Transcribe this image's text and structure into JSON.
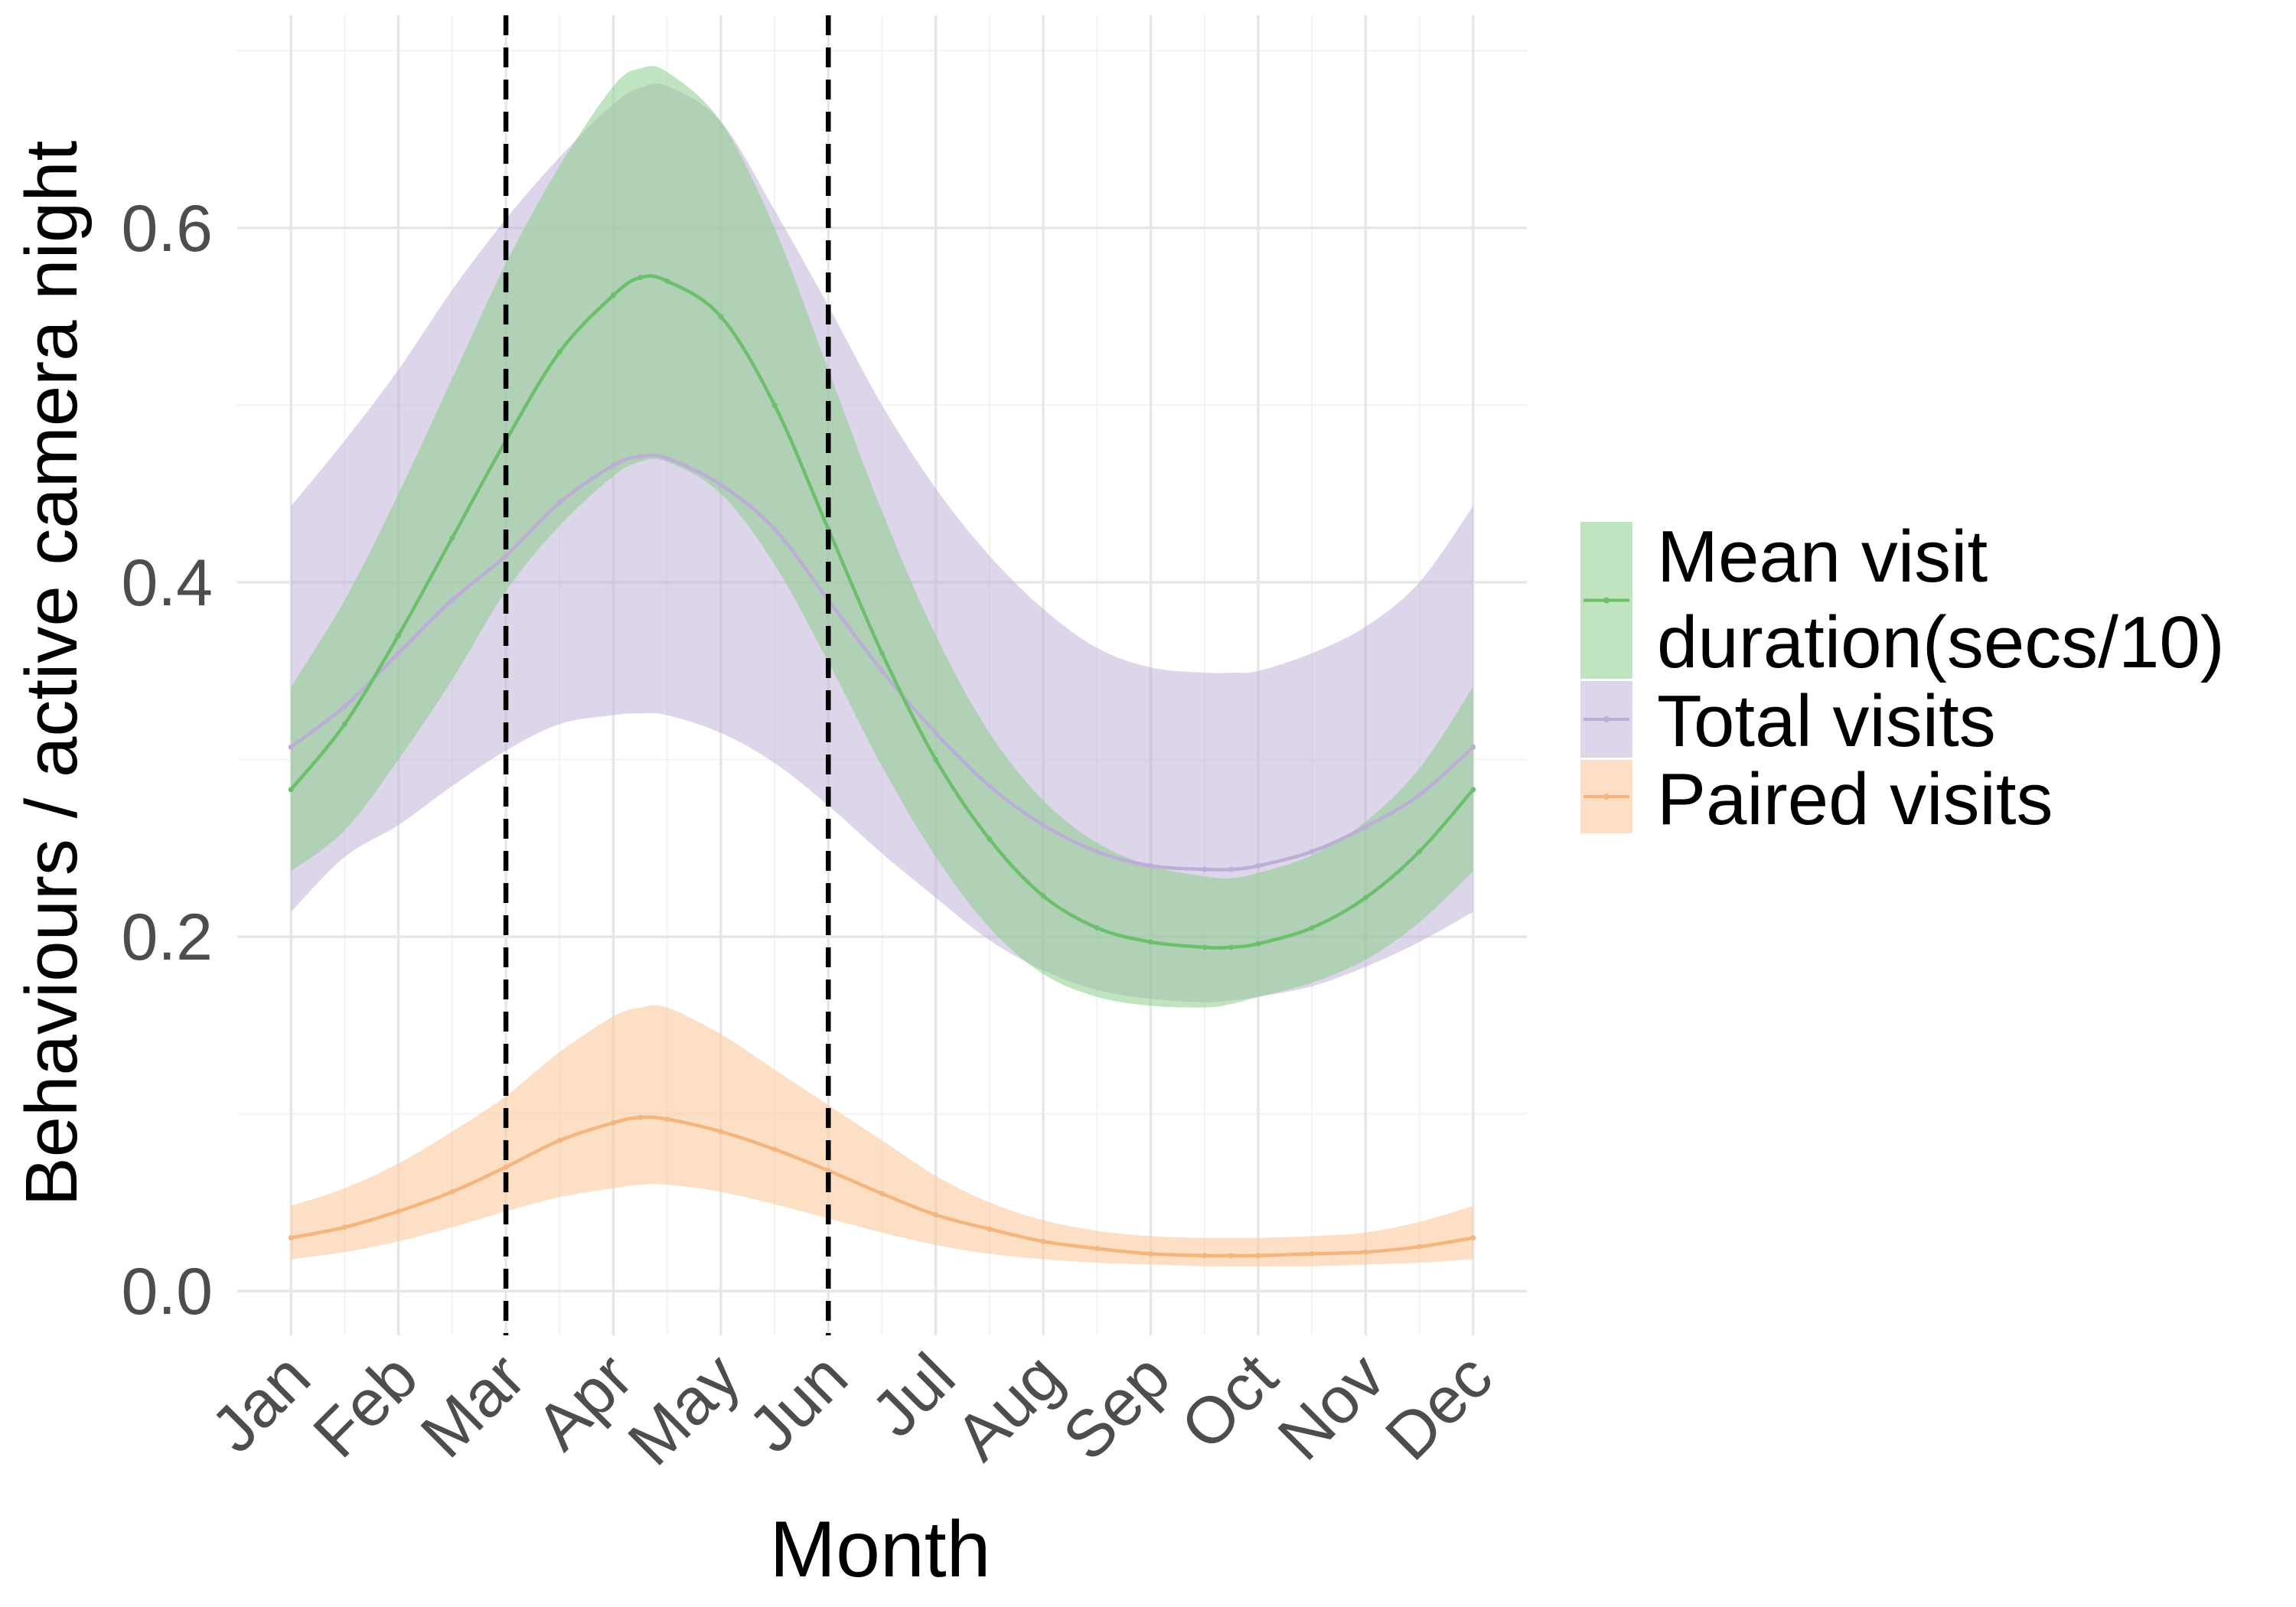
{
  "chart_data": {
    "type": "line",
    "xlabel": "Month",
    "ylabel": "Behaviours / active camera night",
    "categories": [
      "Jan",
      "Feb",
      "Mar",
      "Apr",
      "May",
      "Jun",
      "Jul",
      "Aug",
      "Sep",
      "Oct",
      "Nov",
      "Dec"
    ],
    "xlim": [
      0.5,
      12.5
    ],
    "ylim": [
      -0.025,
      0.72
    ],
    "y_ticks": [
      0.0,
      0.2,
      0.4,
      0.6
    ],
    "y_tick_labels": [
      "0.0",
      "0.2",
      "0.4",
      "0.6"
    ],
    "grid": true,
    "legend_position": "right",
    "vertical_lines": [
      {
        "name": "Mar",
        "x": 3.0,
        "style": "dashed",
        "color": "#000000"
      },
      {
        "name": "Jun",
        "x": 6.0,
        "style": "dashed",
        "color": "#000000"
      }
    ],
    "series": [
      {
        "name": "Total visits",
        "legend_label": "Total visits",
        "line_color": "#bcaed6",
        "fill_color": "#bcaed6",
        "fill_opacity": 0.5,
        "x": [
          1.0,
          1.5,
          2.0,
          2.5,
          3.0,
          3.5,
          4.0,
          4.25,
          4.5,
          5.0,
          5.5,
          6.0,
          6.5,
          7.0,
          7.5,
          8.0,
          8.5,
          9.0,
          9.5,
          9.75,
          10.0,
          10.5,
          11.0,
          11.5,
          12.0
        ],
        "y": [
          0.307,
          0.33,
          0.36,
          0.39,
          0.415,
          0.445,
          0.466,
          0.471,
          0.47,
          0.455,
          0.43,
          0.39,
          0.35,
          0.315,
          0.285,
          0.263,
          0.248,
          0.24,
          0.238,
          0.238,
          0.24,
          0.248,
          0.262,
          0.28,
          0.307
        ],
        "lower": [
          0.214,
          0.245,
          0.263,
          0.285,
          0.305,
          0.32,
          0.325,
          0.326,
          0.325,
          0.315,
          0.298,
          0.274,
          0.247,
          0.222,
          0.198,
          0.181,
          0.17,
          0.165,
          0.163,
          0.164,
          0.166,
          0.172,
          0.183,
          0.197,
          0.214
        ],
        "upper": [
          0.443,
          0.48,
          0.52,
          0.565,
          0.605,
          0.64,
          0.67,
          0.679,
          0.68,
          0.66,
          0.61,
          0.556,
          0.5,
          0.453,
          0.415,
          0.385,
          0.363,
          0.352,
          0.349,
          0.349,
          0.35,
          0.36,
          0.375,
          0.4,
          0.443
        ]
      },
      {
        "name": "Mean visit duration(secs/10)",
        "legend_label_lines": [
          "Mean visit",
          "duration(secs/10)"
        ],
        "line_color": "#6cc06c",
        "fill_color": "#8acd8a",
        "fill_opacity": 0.55,
        "x": [
          1.0,
          1.5,
          2.0,
          2.5,
          3.0,
          3.5,
          4.0,
          4.25,
          4.5,
          5.0,
          5.5,
          6.0,
          6.5,
          7.0,
          7.5,
          8.0,
          8.5,
          9.0,
          9.5,
          9.75,
          10.0,
          10.5,
          11.0,
          11.5,
          12.0
        ],
        "y": [
          0.283,
          0.32,
          0.37,
          0.425,
          0.48,
          0.53,
          0.562,
          0.572,
          0.57,
          0.55,
          0.5,
          0.43,
          0.36,
          0.3,
          0.255,
          0.223,
          0.205,
          0.197,
          0.194,
          0.194,
          0.196,
          0.205,
          0.222,
          0.248,
          0.283
        ],
        "lower": [
          0.237,
          0.26,
          0.3,
          0.345,
          0.395,
          0.432,
          0.46,
          0.468,
          0.468,
          0.45,
          0.41,
          0.355,
          0.296,
          0.245,
          0.205,
          0.179,
          0.166,
          0.161,
          0.16,
          0.162,
          0.166,
          0.174,
          0.187,
          0.208,
          0.237
        ],
        "upper": [
          0.341,
          0.39,
          0.45,
          0.515,
          0.58,
          0.635,
          0.68,
          0.69,
          0.688,
          0.66,
          0.6,
          0.52,
          0.44,
          0.37,
          0.315,
          0.277,
          0.253,
          0.24,
          0.234,
          0.233,
          0.236,
          0.246,
          0.265,
          0.295,
          0.341
        ]
      },
      {
        "name": "Paired visits",
        "legend_label": "Paired visits",
        "line_color": "#f5b57f",
        "fill_color": "#fbc99e",
        "fill_opacity": 0.6,
        "x": [
          1.0,
          1.5,
          2.0,
          2.5,
          3.0,
          3.5,
          4.0,
          4.25,
          4.5,
          5.0,
          5.5,
          6.0,
          6.5,
          7.0,
          7.5,
          8.0,
          8.5,
          9.0,
          9.5,
          9.75,
          10.0,
          10.5,
          11.0,
          11.5,
          12.0
        ],
        "y": [
          0.03,
          0.036,
          0.045,
          0.056,
          0.07,
          0.085,
          0.095,
          0.098,
          0.097,
          0.09,
          0.08,
          0.068,
          0.055,
          0.043,
          0.035,
          0.028,
          0.024,
          0.021,
          0.02,
          0.02,
          0.02,
          0.021,
          0.022,
          0.025,
          0.03
        ],
        "lower": [
          0.018,
          0.022,
          0.028,
          0.036,
          0.045,
          0.053,
          0.058,
          0.06,
          0.06,
          0.056,
          0.049,
          0.041,
          0.033,
          0.026,
          0.021,
          0.018,
          0.016,
          0.015,
          0.014,
          0.014,
          0.014,
          0.014,
          0.015,
          0.016,
          0.018
        ],
        "upper": [
          0.048,
          0.058,
          0.072,
          0.09,
          0.11,
          0.135,
          0.155,
          0.16,
          0.16,
          0.145,
          0.125,
          0.105,
          0.085,
          0.065,
          0.05,
          0.04,
          0.034,
          0.031,
          0.03,
          0.03,
          0.03,
          0.031,
          0.033,
          0.039,
          0.048
        ]
      }
    ],
    "legend": [
      {
        "series": "Mean visit duration(secs/10)",
        "label_lines": [
          "Mean visit",
          "duration(secs/10)"
        ]
      },
      {
        "series": "Total visits",
        "label_lines": [
          "Total visits"
        ]
      },
      {
        "series": "Paired visits",
        "label_lines": [
          "Paired visits"
        ]
      }
    ]
  }
}
